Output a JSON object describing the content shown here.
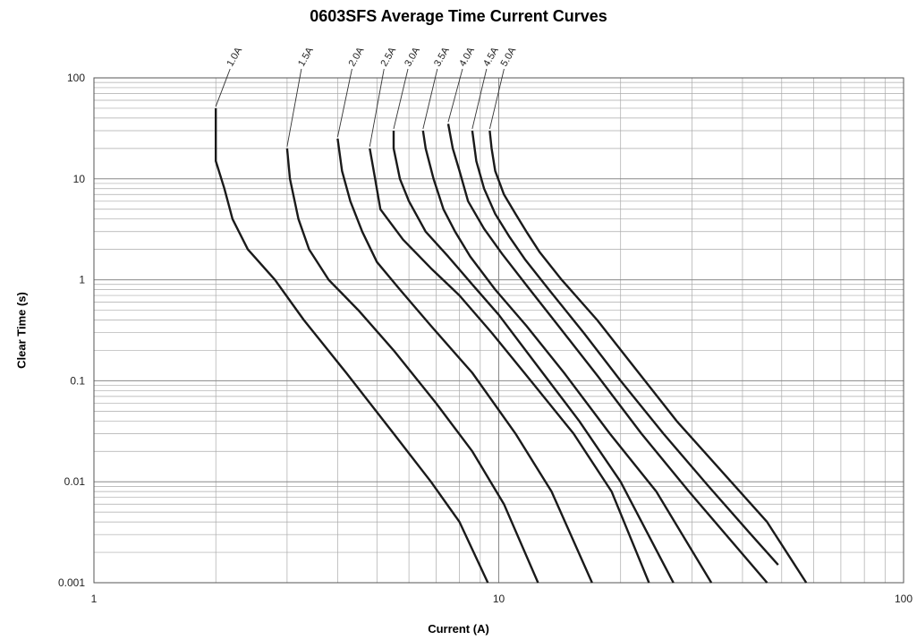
{
  "chart_data": {
    "type": "line",
    "title": "0603SFS Average Time Current Curves",
    "xlabel": "Current (A)",
    "ylabel": "Clear Time (s)",
    "x_scale": "log",
    "y_scale": "log",
    "xlim": [
      1,
      100
    ],
    "ylim": [
      0.001,
      100
    ],
    "x_tick_labels": [
      "1",
      "10",
      "100"
    ],
    "y_tick_labels": [
      "100",
      "10",
      "1",
      "0.1",
      "0.01",
      "0.001"
    ],
    "grid": true,
    "line_color": "#1a1a1a",
    "series": [
      {
        "name": "1.0A",
        "points": [
          [
            2.0,
            50
          ],
          [
            2.0,
            15
          ],
          [
            2.1,
            8
          ],
          [
            2.2,
            4
          ],
          [
            2.4,
            2
          ],
          [
            2.8,
            1
          ],
          [
            3.3,
            0.4
          ],
          [
            4.2,
            0.12
          ],
          [
            5.5,
            0.03
          ],
          [
            6.8,
            0.01
          ],
          [
            8.0,
            0.004
          ],
          [
            9.4,
            0.001
          ]
        ]
      },
      {
        "name": "1.5A",
        "points": [
          [
            3.0,
            20
          ],
          [
            3.05,
            10
          ],
          [
            3.2,
            4
          ],
          [
            3.4,
            2
          ],
          [
            3.8,
            1
          ],
          [
            4.5,
            0.5
          ],
          [
            5.5,
            0.2
          ],
          [
            7.0,
            0.06
          ],
          [
            8.6,
            0.02
          ],
          [
            10.3,
            0.006
          ],
          [
            12.5,
            0.001
          ]
        ]
      },
      {
        "name": "2.0A",
        "points": [
          [
            4.0,
            25
          ],
          [
            4.1,
            12
          ],
          [
            4.3,
            6
          ],
          [
            4.6,
            3
          ],
          [
            5.0,
            1.5
          ],
          [
            5.7,
            0.8
          ],
          [
            6.8,
            0.35
          ],
          [
            8.6,
            0.12
          ],
          [
            11.0,
            0.03
          ],
          [
            13.5,
            0.008
          ],
          [
            17.0,
            0.001
          ]
        ]
      },
      {
        "name": "2.5A",
        "points": [
          [
            4.8,
            20
          ],
          [
            4.95,
            10
          ],
          [
            5.1,
            5
          ],
          [
            5.8,
            2.5
          ],
          [
            6.8,
            1.3
          ],
          [
            8.0,
            0.7
          ],
          [
            9.6,
            0.3
          ],
          [
            12.0,
            0.1
          ],
          [
            15.3,
            0.03
          ],
          [
            19.0,
            0.008
          ],
          [
            23.5,
            0.001
          ]
        ]
      },
      {
        "name": "3.0A",
        "points": [
          [
            5.5,
            30
          ],
          [
            5.5,
            20
          ],
          [
            5.7,
            10
          ],
          [
            6.0,
            6
          ],
          [
            6.6,
            3
          ],
          [
            7.5,
            1.7
          ],
          [
            8.6,
            0.9
          ],
          [
            10.0,
            0.45
          ],
          [
            12.3,
            0.15
          ],
          [
            15.8,
            0.04
          ],
          [
            20.0,
            0.01
          ],
          [
            27.0,
            0.001
          ]
        ]
      },
      {
        "name": "3.5A",
        "points": [
          [
            6.5,
            30
          ],
          [
            6.6,
            20
          ],
          [
            6.9,
            10
          ],
          [
            7.3,
            5
          ],
          [
            7.8,
            3
          ],
          [
            8.5,
            1.7
          ],
          [
            9.8,
            0.8
          ],
          [
            11.7,
            0.35
          ],
          [
            14.5,
            0.12
          ],
          [
            18.8,
            0.03
          ],
          [
            24.5,
            0.008
          ],
          [
            33.5,
            0.001
          ]
        ]
      },
      {
        "name": "4.0A",
        "points": [
          [
            7.5,
            35
          ],
          [
            7.7,
            20
          ],
          [
            8.0,
            12
          ],
          [
            8.4,
            6
          ],
          [
            9.2,
            3.2
          ],
          [
            10.2,
            1.8
          ],
          [
            11.8,
            0.85
          ],
          [
            14.2,
            0.33
          ],
          [
            17.6,
            0.11
          ],
          [
            22.5,
            0.03
          ],
          [
            29.5,
            0.008
          ],
          [
            46.0,
            0.001
          ]
        ]
      },
      {
        "name": "4.5A",
        "points": [
          [
            8.6,
            30
          ],
          [
            8.8,
            15
          ],
          [
            9.2,
            8
          ],
          [
            9.8,
            4.5
          ],
          [
            10.6,
            2.7
          ],
          [
            11.6,
            1.6
          ],
          [
            13.3,
            0.8
          ],
          [
            16.2,
            0.3
          ],
          [
            20.0,
            0.1
          ],
          [
            25.5,
            0.03
          ],
          [
            33.0,
            0.009
          ],
          [
            42.0,
            0.003
          ],
          [
            49.0,
            0.0015
          ]
        ]
      },
      {
        "name": "5.0A",
        "points": [
          [
            9.5,
            30
          ],
          [
            9.6,
            20
          ],
          [
            9.8,
            12
          ],
          [
            10.3,
            7
          ],
          [
            11.0,
            4.5
          ],
          [
            11.7,
            3
          ],
          [
            12.6,
            1.9
          ],
          [
            14.3,
            1
          ],
          [
            17.5,
            0.4
          ],
          [
            21.5,
            0.14
          ],
          [
            27.5,
            0.04
          ],
          [
            36.0,
            0.012
          ],
          [
            46.0,
            0.004
          ],
          [
            57.5,
            0.001
          ]
        ]
      }
    ]
  }
}
